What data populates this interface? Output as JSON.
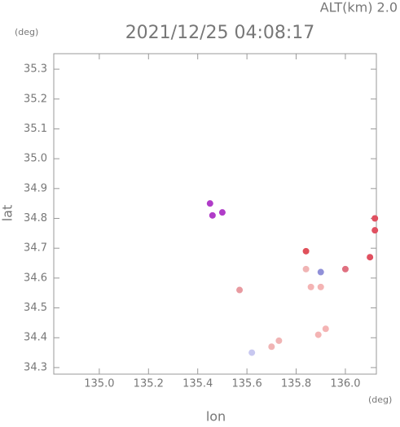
{
  "chart_data": {
    "type": "scatter",
    "title": "2021/12/25 04:08:17",
    "subtitle": "ALT(km) 2.0",
    "y_unit": "(deg)",
    "x_unit": "(deg)",
    "x_label": "lon",
    "y_label": "lat",
    "x": [
      135.45,
      135.46,
      135.5,
      135.57,
      135.62,
      135.7,
      135.73,
      135.84,
      135.84,
      135.86,
      135.9,
      135.9,
      135.89,
      135.92,
      136.0,
      136.1,
      136.12,
      136.12
    ],
    "y": [
      34.85,
      34.81,
      34.82,
      34.56,
      34.35,
      34.37,
      34.39,
      34.63,
      34.69,
      34.57,
      34.57,
      34.62,
      34.41,
      34.43,
      34.63,
      34.67,
      34.8,
      34.76
    ],
    "colors": [
      "#b03cc8",
      "#b03cc8",
      "#b03cc8",
      "#e89aa0",
      "#c8c8f0",
      "#f0b4b4",
      "#f0b4b4",
      "#f0b4b4",
      "#e0505a",
      "#f4b4b4",
      "#f4b4b4",
      "#9090d8",
      "#f4b4b4",
      "#f4b4b4",
      "#e07080",
      "#e05060",
      "#e05060",
      "#e05060"
    ],
    "xlim": [
      134.815,
      136.126
    ],
    "ylim": [
      34.278,
      35.352
    ],
    "xticks": [
      {
        "value": 135,
        "label": "135.0"
      },
      {
        "value": 135.2,
        "label": "135.2"
      },
      {
        "value": 135.4,
        "label": "135.4"
      },
      {
        "value": 135.6,
        "label": "135.6"
      },
      {
        "value": 135.8,
        "label": "135.8"
      },
      {
        "value": 136,
        "label": "136.0"
      }
    ],
    "yticks": [
      34.3,
      34.4,
      34.5,
      34.6,
      34.7,
      34.8,
      34.9,
      {
        "value": 35,
        "label": "35.0"
      },
      35.1,
      35.2,
      35.3
    ]
  }
}
